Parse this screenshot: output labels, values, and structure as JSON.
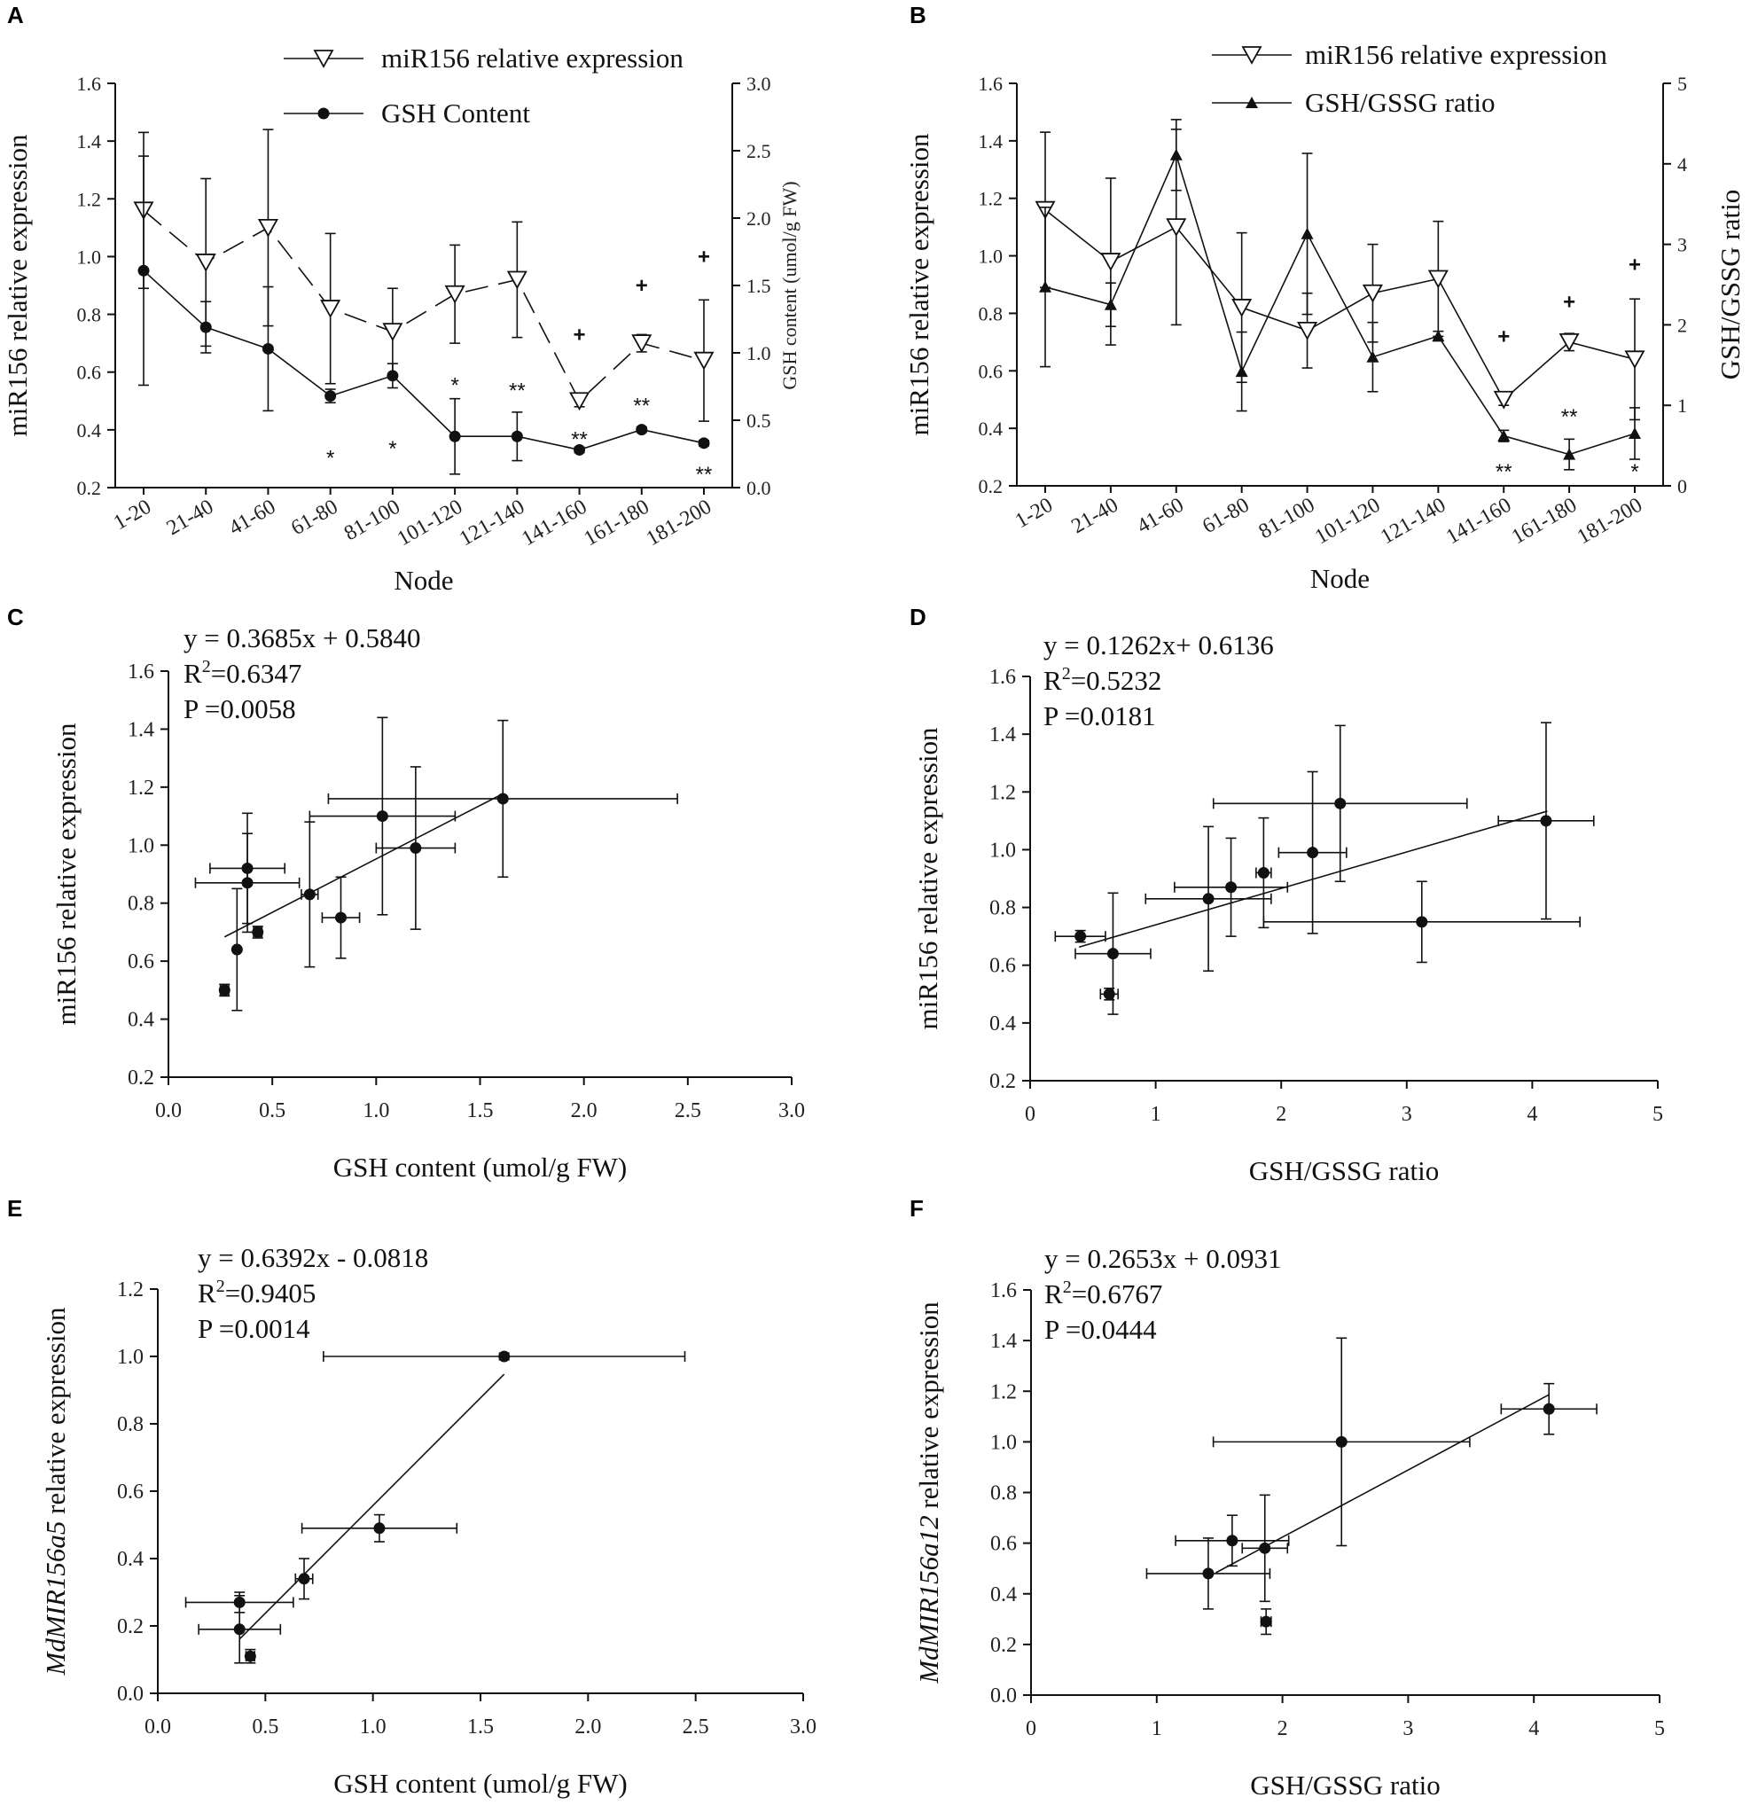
{
  "chart_data": [
    {
      "id": "A",
      "panel_label": "A",
      "type": "line",
      "xlabel": "Node",
      "ylabel": "miR156 relative expression",
      "y2label": "GSH content (umol/g FW)",
      "categories": [
        "1-20",
        "21-40",
        "41-60",
        "61-80",
        "81-100",
        "101-120",
        "121-140",
        "141-160",
        "161-180",
        "181-200"
      ],
      "ylim": [
        0.2,
        1.6
      ],
      "yticks": [
        "0.2",
        "0.4",
        "0.6",
        "0.8",
        "1.0",
        "1.2",
        "1.4",
        "1.6"
      ],
      "y2lim": [
        0.0,
        3.0
      ],
      "y2ticks": [
        "0.0",
        "0.5",
        "1.0",
        "1.5",
        "2.0",
        "2.5",
        "3.0"
      ],
      "series": [
        {
          "name": "miR156 relative expression",
          "marker": "open-triangle-down",
          "line": "dashed",
          "axis": "left",
          "values": [
            1.16,
            0.98,
            1.1,
            0.82,
            0.74,
            0.87,
            0.92,
            0.5,
            0.7,
            0.64
          ],
          "errors": [
            0.27,
            0.29,
            0.34,
            0.26,
            0.15,
            0.17,
            0.2,
            0.02,
            0.03,
            0.21
          ]
        },
        {
          "name": "GSH Content",
          "marker": "filled-circle",
          "line": "solid",
          "axis": "right",
          "values": [
            1.61,
            1.19,
            1.03,
            0.68,
            0.83,
            0.38,
            0.38,
            0.28,
            0.43,
            0.33
          ],
          "errors": [
            0.85,
            0.19,
            0.46,
            0.05,
            0.09,
            0.28,
            0.18,
            0.02,
            0.02,
            0.02
          ]
        }
      ],
      "annotations": [
        {
          "text": "*",
          "cat": 3,
          "y": 0.22,
          "axis": "right"
        },
        {
          "text": "*",
          "cat": 4,
          "y": 0.29,
          "axis": "right"
        },
        {
          "text": "*",
          "cat": 5,
          "y": 0.76,
          "axis": "right"
        },
        {
          "text": "**",
          "cat": 6,
          "y": 0.72,
          "axis": "right"
        },
        {
          "text": "**",
          "cat": 7,
          "y": 0.36,
          "axis": "right"
        },
        {
          "text": "**",
          "cat": 8,
          "y": 0.61,
          "axis": "right"
        },
        {
          "text": "**",
          "cat": 9,
          "y": 0.1,
          "axis": "right"
        },
        {
          "text": "+",
          "cat": 7,
          "y": 0.73,
          "axis": "left"
        },
        {
          "text": "+",
          "cat": 8,
          "y": 0.9,
          "axis": "left"
        },
        {
          "text": "+",
          "cat": 9,
          "y": 1.0,
          "axis": "left"
        }
      ]
    },
    {
      "id": "B",
      "panel_label": "B",
      "type": "line",
      "xlabel": "Node",
      "ylabel": "miR156 relative expression",
      "y2label": "GSH/GSSG ratio",
      "categories": [
        "1-20",
        "21-40",
        "41-60",
        "61-80",
        "81-100",
        "101-120",
        "121-140",
        "141-160",
        "161-180",
        "181-200"
      ],
      "ylim": [
        0.2,
        1.6
      ],
      "yticks": [
        "0.2",
        "0.4",
        "0.6",
        "0.8",
        "1.0",
        "1.2",
        "1.4",
        "1.6"
      ],
      "y2lim": [
        0,
        5
      ],
      "y2ticks": [
        "0",
        "1",
        "2",
        "3",
        "4",
        "5"
      ],
      "series": [
        {
          "name": "miR156 relative expression",
          "marker": "open-triangle-down",
          "line": "solid",
          "axis": "left",
          "values": [
            1.16,
            0.98,
            1.1,
            0.82,
            0.74,
            0.87,
            0.92,
            0.5,
            0.7,
            0.64
          ],
          "errors": [
            0.27,
            0.29,
            0.34,
            0.26,
            0.13,
            0.17,
            0.2,
            0.02,
            0.03,
            0.21
          ]
        },
        {
          "name": "GSH/GSSG ratio",
          "marker": "filled-triangle-up",
          "line": "solid",
          "axis": "right",
          "values": [
            2.47,
            2.25,
            4.11,
            1.42,
            3.13,
            1.6,
            1.86,
            0.62,
            0.39,
            0.65
          ],
          "errors": [
            0.99,
            0.27,
            0.44,
            0.49,
            1.0,
            0.43,
            0.06,
            0.07,
            0.19,
            0.32
          ]
        }
      ],
      "annotations": [
        {
          "text": "**",
          "cat": 7,
          "y": 0.25,
          "axis": "left"
        },
        {
          "text": "**",
          "cat": 8,
          "y": 0.44,
          "axis": "left"
        },
        {
          "text": "*",
          "cat": 9,
          "y": 0.25,
          "axis": "left"
        },
        {
          "text": "+",
          "cat": 7,
          "y": 0.72,
          "axis": "left"
        },
        {
          "text": "+",
          "cat": 8,
          "y": 0.84,
          "axis": "left"
        },
        {
          "text": "+",
          "cat": 9,
          "y": 0.97,
          "axis": "left"
        }
      ]
    },
    {
      "id": "C",
      "panel_label": "C",
      "type": "scatter",
      "xlabel": "GSH content (umol/g FW)",
      "ylabel": "miR156 relative expression",
      "xlim": [
        0,
        3
      ],
      "xticks": [
        "0.0",
        "0.5",
        "1.0",
        "1.5",
        "2.0",
        "2.5",
        "3.0"
      ],
      "ylim": [
        0.2,
        1.6
      ],
      "yticks": [
        "0.2",
        "0.4",
        "0.6",
        "0.8",
        "1.0",
        "1.2",
        "1.4",
        "1.6"
      ],
      "equation": "y   = 0.3685x + 0.5840",
      "r2": "=0.6347",
      "p": "P    =0.0058",
      "fit": {
        "slope": 0.3685,
        "intercept": 0.584,
        "x": [
          0.27,
          1.6
        ]
      },
      "points": [
        {
          "x": 1.61,
          "y": 1.16,
          "xerr": 0.84,
          "yerr": 0.27
        },
        {
          "x": 1.19,
          "y": 0.99,
          "xerr": 0.19,
          "yerr": 0.28
        },
        {
          "x": 1.03,
          "y": 1.1,
          "xerr": 0.35,
          "yerr": 0.34
        },
        {
          "x": 0.68,
          "y": 0.83,
          "xerr": 0.04,
          "yerr": 0.25
        },
        {
          "x": 0.83,
          "y": 0.75,
          "xerr": 0.09,
          "yerr": 0.14
        },
        {
          "x": 0.38,
          "y": 0.92,
          "xerr": 0.18,
          "yerr": 0.19
        },
        {
          "x": 0.38,
          "y": 0.87,
          "xerr": 0.25,
          "yerr": 0.17
        },
        {
          "x": 0.27,
          "y": 0.5,
          "xerr": 0.02,
          "yerr": 0.02
        },
        {
          "x": 0.43,
          "y": 0.7,
          "xerr": 0.02,
          "yerr": 0.02
        },
        {
          "x": 0.33,
          "y": 0.64,
          "xerr": 0.01,
          "yerr": 0.21
        }
      ]
    },
    {
      "id": "D",
      "panel_label": "D",
      "type": "scatter",
      "xlabel": "GSH/GSSG  ratio",
      "ylabel": "miR156 relative expression",
      "xlim": [
        0,
        5
      ],
      "xticks": [
        "0",
        "1",
        "2",
        "3",
        "4",
        "5"
      ],
      "ylim": [
        0.2,
        1.6
      ],
      "yticks": [
        "0.2",
        "0.4",
        "0.6",
        "0.8",
        "1.0",
        "1.2",
        "1.4",
        "1.6"
      ],
      "equation": "y   = 0.1262x+ 0.6136",
      "r2": "=0.5232",
      "p": "P    =0.0181",
      "fit": {
        "slope": 0.1262,
        "intercept": 0.6136,
        "x": [
          0.39,
          4.12
        ]
      },
      "points": [
        {
          "x": 2.47,
          "y": 1.16,
          "xerr": 1.01,
          "yerr": 0.27
        },
        {
          "x": 2.25,
          "y": 0.99,
          "xerr": 0.27,
          "yerr": 0.28
        },
        {
          "x": 4.11,
          "y": 1.1,
          "xerr": 0.38,
          "yerr": 0.34
        },
        {
          "x": 1.42,
          "y": 0.83,
          "xerr": 0.5,
          "yerr": 0.25
        },
        {
          "x": 3.12,
          "y": 0.75,
          "xerr": 1.26,
          "yerr": 0.14
        },
        {
          "x": 1.86,
          "y": 0.92,
          "xerr": 0.06,
          "yerr": 0.19
        },
        {
          "x": 1.6,
          "y": 0.87,
          "xerr": 0.45,
          "yerr": 0.17
        },
        {
          "x": 0.63,
          "y": 0.5,
          "xerr": 0.07,
          "yerr": 0.02
        },
        {
          "x": 0.4,
          "y": 0.7,
          "xerr": 0.2,
          "yerr": 0.02
        },
        {
          "x": 0.66,
          "y": 0.64,
          "xerr": 0.3,
          "yerr": 0.21
        }
      ]
    },
    {
      "id": "E",
      "panel_label": "E",
      "type": "scatter",
      "xlabel": "GSH content (umol/g FW)",
      "ylabel_italic": "MdMIR156a5",
      "ylabel_rest": " relative expression",
      "xlim": [
        0,
        3
      ],
      "xticks": [
        "0.0",
        "0.5",
        "1.0",
        "1.5",
        "2.0",
        "2.5",
        "3.0"
      ],
      "ylim": [
        0.0,
        1.2
      ],
      "yticks": [
        "0.0",
        "0.2",
        "0.4",
        "0.6",
        "0.8",
        "1.0",
        "1.2"
      ],
      "equation": "y   = 0.6392x - 0.0818",
      "r2": "=0.9405",
      "p": "P    =0.0014",
      "fit": {
        "slope": 0.6392,
        "intercept": -0.0818,
        "x": [
          0.38,
          1.61
        ]
      },
      "points": [
        {
          "x": 1.61,
          "y": 1.0,
          "xerr": 0.84,
          "yerr": 0.01
        },
        {
          "x": 1.03,
          "y": 0.49,
          "xerr": 0.36,
          "yerr": 0.04
        },
        {
          "x": 0.68,
          "y": 0.34,
          "xerr": 0.04,
          "yerr": 0.06
        },
        {
          "x": 0.38,
          "y": 0.27,
          "xerr": 0.25,
          "yerr": 0.03
        },
        {
          "x": 0.38,
          "y": 0.19,
          "xerr": 0.19,
          "yerr": 0.1
        },
        {
          "x": 0.43,
          "y": 0.11,
          "xerr": 0.02,
          "yerr": 0.02
        }
      ]
    },
    {
      "id": "F",
      "panel_label": "F",
      "type": "scatter",
      "xlabel": "GSH/GSSG ratio",
      "ylabel_italic": "MdMIR156a12",
      "ylabel_rest": " relative expression",
      "xlim": [
        0,
        5
      ],
      "xticks": [
        "0",
        "1",
        "2",
        "3",
        "4",
        "5"
      ],
      "ylim": [
        0.0,
        1.6
      ],
      "yticks": [
        "0.0",
        "0.2",
        "0.4",
        "0.6",
        "0.8",
        "1.0",
        "1.2",
        "1.4",
        "1.6"
      ],
      "equation": "y   = 0.2653x + 0.0931",
      "r2": "=0.6767",
      "p": "P    =0.0444",
      "fit": {
        "slope": 0.2653,
        "intercept": 0.0931,
        "x": [
          1.47,
          4.12
        ]
      },
      "points": [
        {
          "x": 2.47,
          "y": 1.0,
          "xerr": 1.02,
          "yerr": 0.41
        },
        {
          "x": 4.12,
          "y": 1.13,
          "xerr": 0.38,
          "yerr": 0.1
        },
        {
          "x": 1.6,
          "y": 0.61,
          "xerr": 0.45,
          "yerr": 0.1
        },
        {
          "x": 1.86,
          "y": 0.58,
          "xerr": 0.18,
          "yerr": 0.21
        },
        {
          "x": 1.41,
          "y": 0.48,
          "xerr": 0.49,
          "yerr": 0.14
        },
        {
          "x": 1.87,
          "y": 0.29,
          "xerr": 0.04,
          "yerr": 0.05
        }
      ]
    }
  ]
}
